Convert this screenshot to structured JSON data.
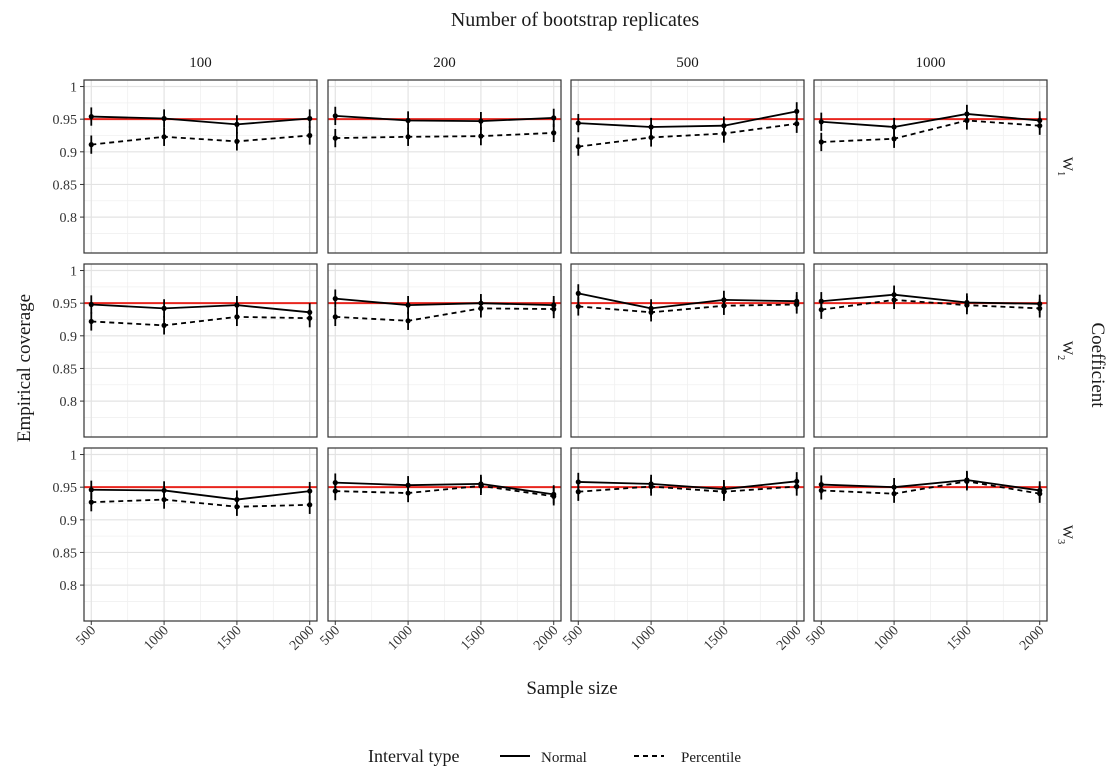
{
  "chart_data": {
    "type": "line",
    "title": "Number of bootstrap replicates",
    "xlabel": "Sample size",
    "ylabel": "Empirical coverage",
    "row_facet_title": "Coefficient",
    "column_facets": [
      "100",
      "200",
      "500",
      "1000"
    ],
    "row_facets": [
      {
        "letter": "W",
        "sub": "1"
      },
      {
        "letter": "W",
        "sub": "2"
      },
      {
        "letter": "W",
        "sub": "3"
      }
    ],
    "x": [
      500,
      1000,
      1500,
      2000
    ],
    "x_ticks": [
      "500",
      "1000",
      "1500",
      "2000"
    ],
    "xlim": [
      450,
      2050
    ],
    "y_ticks": [
      0.8,
      0.85,
      0.9,
      0.95,
      1
    ],
    "y_tick_labels": [
      "0.8",
      "0.85",
      "0.9",
      "0.95",
      "1"
    ],
    "ylim": [
      0.745,
      1.01
    ],
    "reference_line": {
      "y": 0.95,
      "color": "#e8251e"
    },
    "error_half_width": 0.014,
    "grid": true,
    "legend": {
      "title": "Interval type",
      "position": "bottom",
      "entries": [
        {
          "name": "Normal",
          "dash": "solid"
        },
        {
          "name": "Percentile",
          "dash": "dashed"
        }
      ]
    },
    "series": [
      {
        "name": "Normal",
        "dash": "solid",
        "panels": [
          [
            [
              0.954,
              0.951,
              0.942,
              0.951
            ],
            [
              0.955,
              0.948,
              0.947,
              0.952
            ],
            [
              0.944,
              0.938,
              0.94,
              0.962
            ],
            [
              0.946,
              0.938,
              0.958,
              0.948
            ]
          ],
          [
            [
              0.948,
              0.942,
              0.947,
              0.936
            ],
            [
              0.957,
              0.947,
              0.95,
              0.947
            ],
            [
              0.965,
              0.942,
              0.955,
              0.953
            ],
            [
              0.953,
              0.963,
              0.951,
              0.949
            ]
          ],
          [
            [
              0.946,
              0.945,
              0.931,
              0.944
            ],
            [
              0.957,
              0.953,
              0.955,
              0.939
            ],
            [
              0.958,
              0.955,
              0.947,
              0.959
            ],
            [
              0.954,
              0.95,
              0.961,
              0.945
            ]
          ]
        ]
      },
      {
        "name": "Percentile",
        "dash": "dashed",
        "panels": [
          [
            [
              0.911,
              0.923,
              0.916,
              0.925
            ],
            [
              0.921,
              0.923,
              0.924,
              0.929
            ],
            [
              0.908,
              0.922,
              0.928,
              0.943
            ],
            [
              0.915,
              0.92,
              0.948,
              0.94
            ]
          ],
          [
            [
              0.922,
              0.916,
              0.929,
              0.927
            ],
            [
              0.929,
              0.923,
              0.942,
              0.941
            ],
            [
              0.945,
              0.936,
              0.946,
              0.948
            ],
            [
              0.94,
              0.955,
              0.947,
              0.942
            ]
          ],
          [
            [
              0.927,
              0.931,
              0.92,
              0.923
            ],
            [
              0.944,
              0.941,
              0.952,
              0.936
            ],
            [
              0.943,
              0.951,
              0.943,
              0.951
            ],
            [
              0.945,
              0.94,
              0.959,
              0.94
            ]
          ]
        ]
      }
    ]
  }
}
